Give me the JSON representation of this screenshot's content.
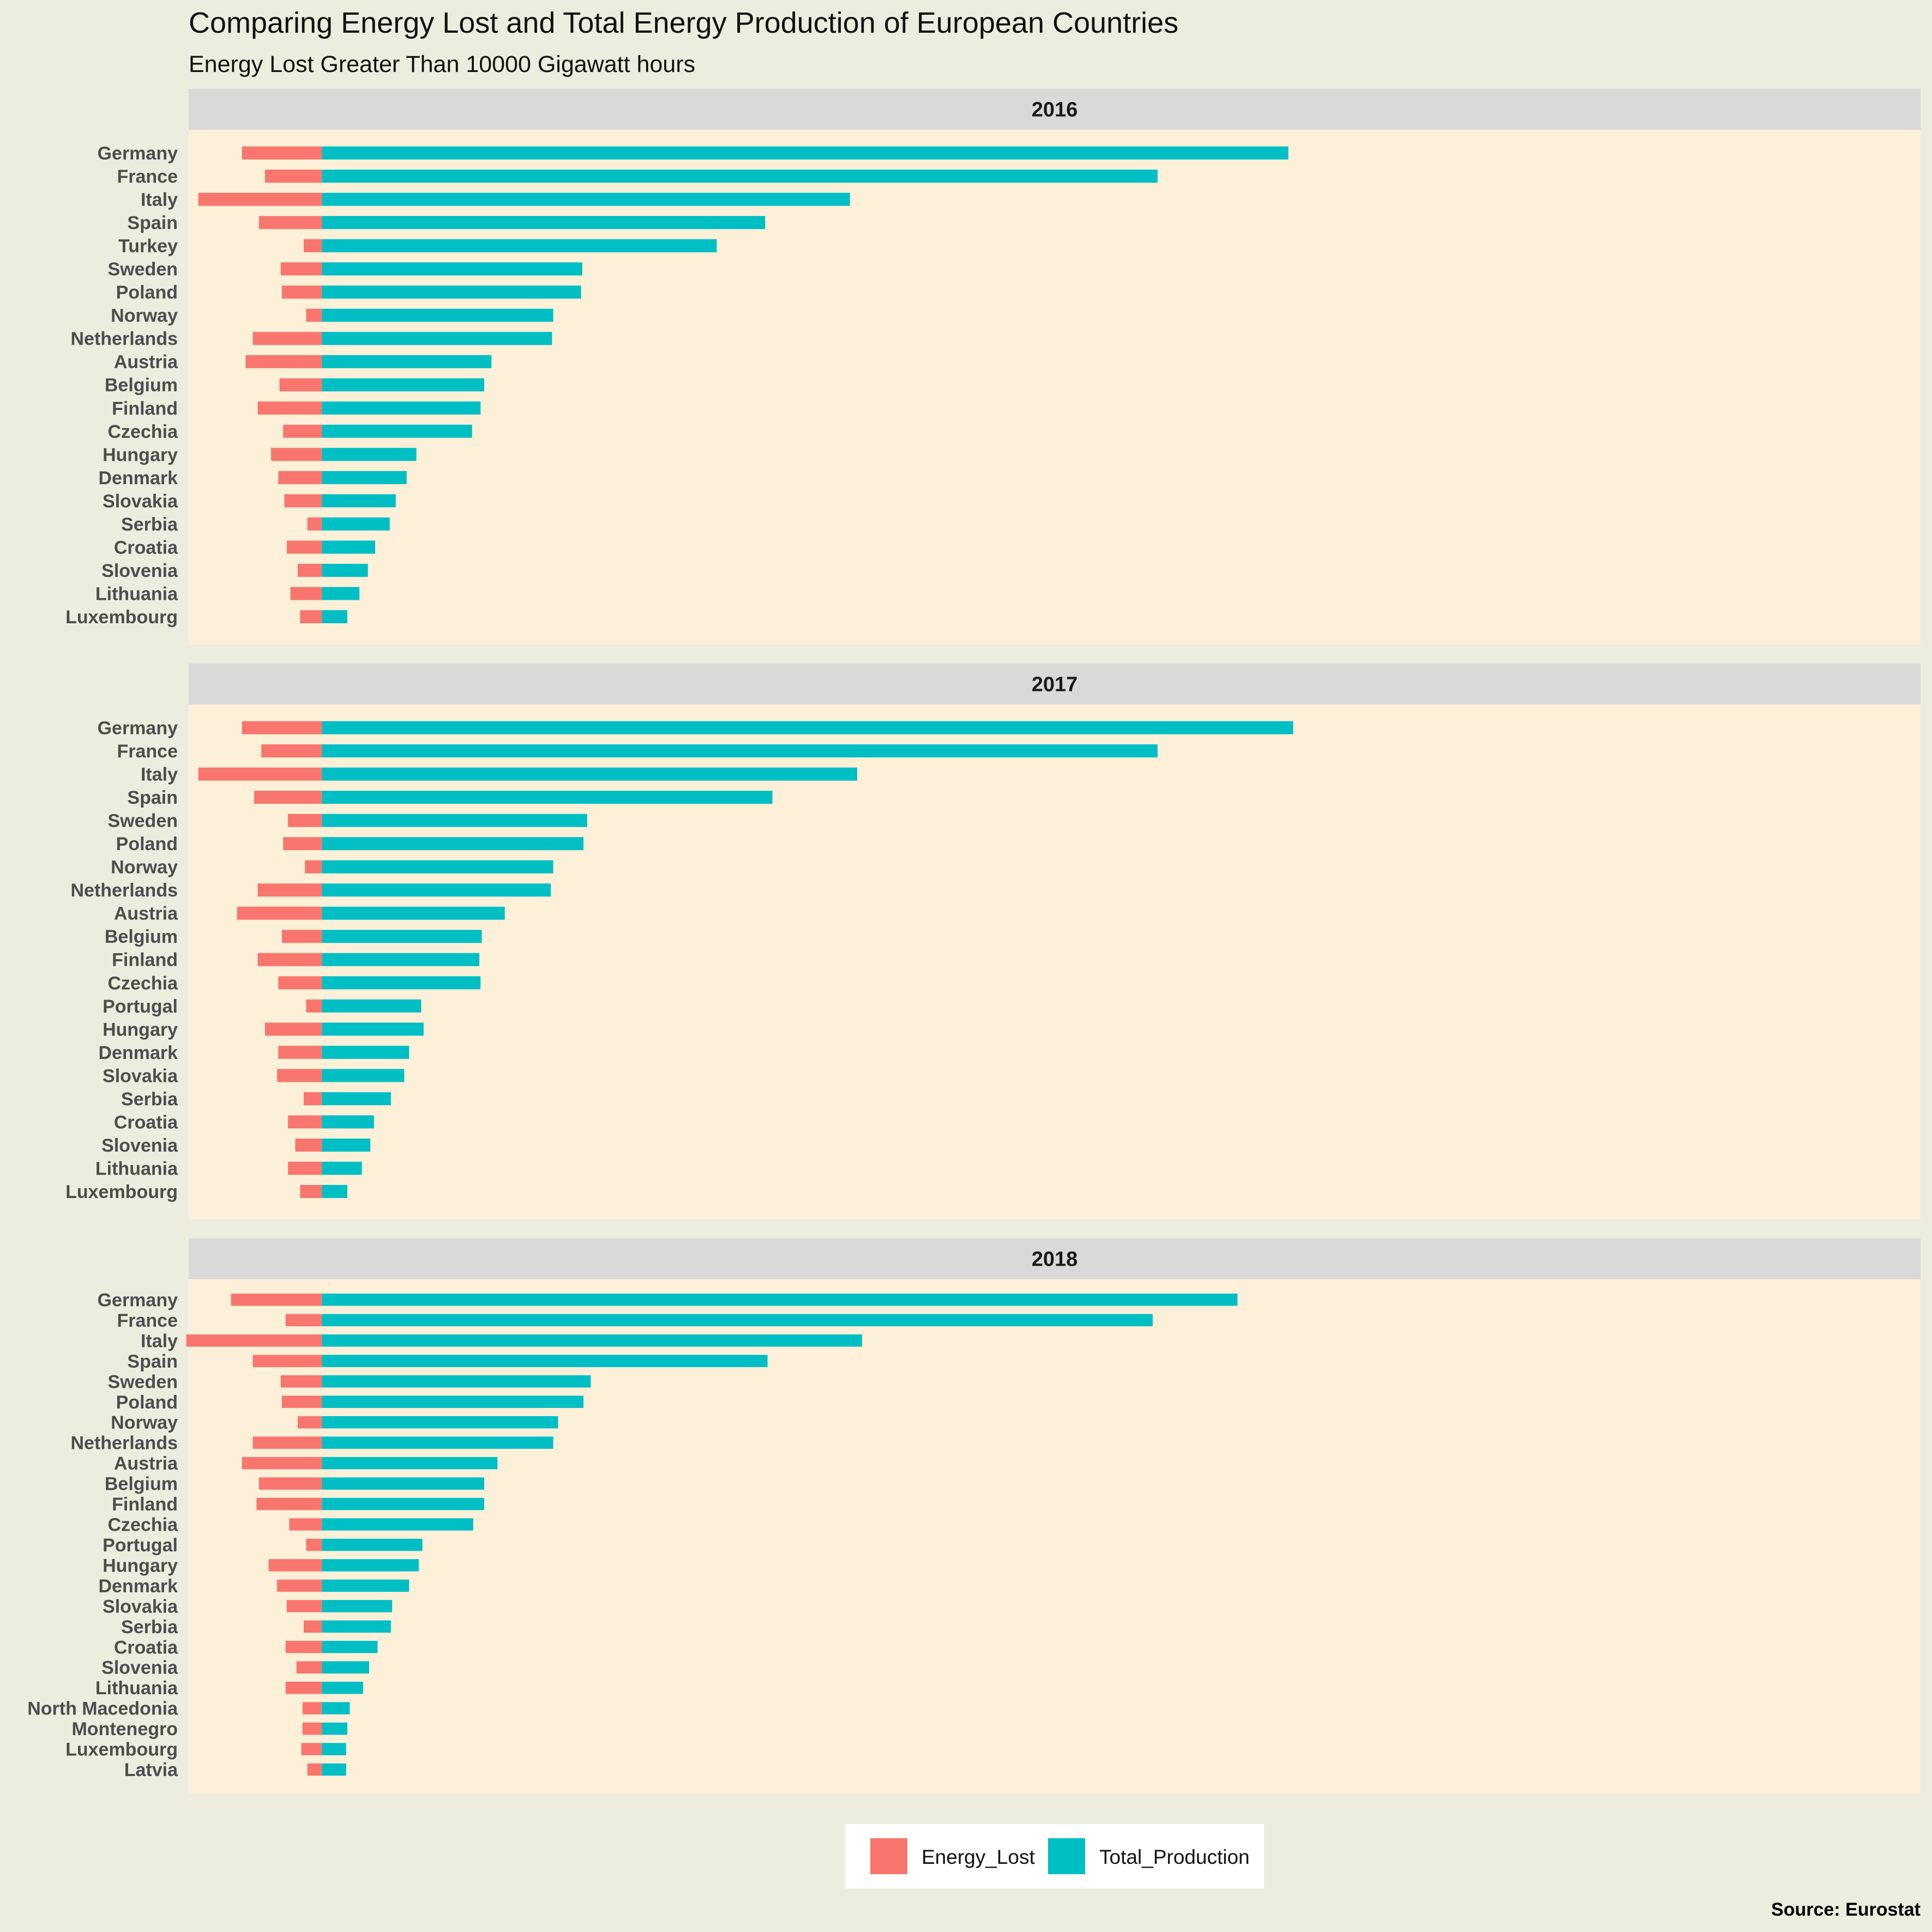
{
  "chart_data": {
    "type": "bar",
    "orientation": "horizontal",
    "stacking": "diverging",
    "title": "Comparing Energy Lost and Total Energy Production of European Countries",
    "subtitle": "Energy Lost Greater Than 10000 Gigawatt hours",
    "caption": "Source: Eurostat",
    "legend": {
      "position": "bottom",
      "entries": [
        {
          "key": "Energy_Lost",
          "label": "Energy_Lost"
        },
        {
          "key": "Total_Production",
          "label": "Total_Production"
        }
      ]
    },
    "colors": {
      "Energy_Lost": "#F8766D",
      "Total_Production": "#00BFC4"
    },
    "panel_background": "#fdf0d8",
    "plot_background": "#ededdf",
    "strip_background": "#d9d9d9",
    "grid": false,
    "x_axis_labels_shown": false,
    "xlim": [
      -55000,
      660000
    ],
    "facets": [
      {
        "label": "2016",
        "categories": [
          "Germany",
          "France",
          "Italy",
          "Spain",
          "Turkey",
          "Sweden",
          "Poland",
          "Norway",
          "Netherlands",
          "Austria",
          "Belgium",
          "Finland",
          "Czechia",
          "Hungary",
          "Denmark",
          "Slovakia",
          "Serbia",
          "Croatia",
          "Slovenia",
          "Lithuania",
          "Luxembourg"
        ],
        "series": [
          {
            "key": "Energy_Lost",
            "values": [
              -33000,
              -23500,
              -51000,
              -26000,
              -7500,
              -17000,
              -16500,
              -6500,
              -28500,
              -31500,
              -17500,
              -26500,
              -16000,
              -21000,
              -18000,
              -15500,
              -6000,
              -14500,
              -10000,
              -13000,
              -9000
            ]
          },
          {
            "key": "Total_Production",
            "values": [
              399000,
              345000,
              218000,
              183000,
              163000,
              107500,
              107000,
              95500,
              95000,
              70000,
              67000,
              65500,
              62000,
              39000,
              35000,
              30500,
              28000,
              22000,
              19000,
              15500,
              10500
            ]
          }
        ]
      },
      {
        "label": "2017",
        "categories": [
          "Germany",
          "France",
          "Italy",
          "Spain",
          "Sweden",
          "Poland",
          "Norway",
          "Netherlands",
          "Austria",
          "Belgium",
          "Finland",
          "Czechia",
          "Portugal",
          "Hungary",
          "Denmark",
          "Slovakia",
          "Serbia",
          "Croatia",
          "Slovenia",
          "Lithuania",
          "Luxembourg"
        ],
        "series": [
          {
            "key": "Energy_Lost",
            "values": [
              -33000,
              -25000,
              -51000,
              -28000,
              -14000,
              -16000,
              -7000,
              -26500,
              -35000,
              -16500,
              -26500,
              -18000,
              -6500,
              -23500,
              -18000,
              -18500,
              -7500,
              -14000,
              -11000,
              -14000,
              -9000
            ]
          },
          {
            "key": "Total_Production",
            "values": [
              401000,
              345000,
              221000,
              186000,
              109500,
              108000,
              95500,
              94500,
              75500,
              66000,
              65000,
              65500,
              41000,
              42000,
              36000,
              34000,
              28500,
              21500,
              20000,
              16500,
              10500
            ]
          }
        ]
      },
      {
        "label": "2018",
        "categories": [
          "Germany",
          "France",
          "Italy",
          "Spain",
          "Sweden",
          "Poland",
          "Norway",
          "Netherlands",
          "Austria",
          "Belgium",
          "Finland",
          "Czechia",
          "Portugal",
          "Hungary",
          "Denmark",
          "Slovakia",
          "Serbia",
          "Croatia",
          "Slovenia",
          "Lithuania",
          "North Macedonia",
          "Montenegro",
          "Luxembourg",
          "Latvia"
        ],
        "series": [
          {
            "key": "Energy_Lost",
            "values": [
              -37500,
              -15000,
              -56000,
              -28500,
              -17000,
              -16500,
              -10000,
              -28500,
              -33000,
              -26000,
              -27000,
              -13500,
              -6500,
              -22000,
              -18500,
              -14500,
              -7500,
              -15000,
              -10500,
              -15000,
              -8000,
              -8000,
              -8500,
              -6000
            ]
          },
          {
            "key": "Total_Production",
            "values": [
              378000,
              343000,
              223000,
              184000,
              111000,
              108000,
              97500,
              95500,
              72500,
              67000,
              67000,
              62500,
              41500,
              40000,
              36000,
              29000,
              28500,
              23000,
              19500,
              17000,
              11500,
              10500,
              10000,
              10000
            ]
          }
        ]
      }
    ]
  }
}
